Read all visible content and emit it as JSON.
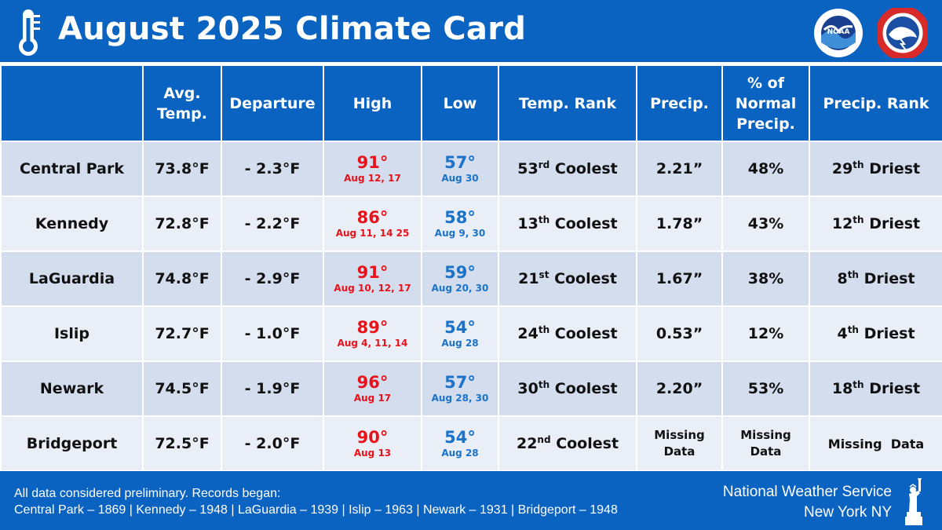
{
  "header": {
    "title": "August 2025 Climate Card",
    "icons": [
      "thermometer-icon",
      "noaa-logo",
      "nws-logo"
    ]
  },
  "columns": [
    "",
    "Avg. Temp.",
    "Departure",
    "High",
    "Low",
    "Temp. Rank",
    "Precip.",
    "% of Normal Precip.",
    "Precip. Rank"
  ],
  "stations": [
    {
      "name": "Central Park",
      "avg": "73.8°F",
      "departure": "- 2.3°F",
      "high": "91°",
      "high_date": "Aug 12, 17",
      "low": "57°",
      "low_date": "Aug 30",
      "temp_rank_num": "53",
      "temp_rank_sfx": "rd",
      "temp_rank_word": "Coolest",
      "precip": "2.21”",
      "pct": "48%",
      "precip_rank_num": "29",
      "precip_rank_sfx": "th",
      "precip_rank_word": "Driest"
    },
    {
      "name": "Kennedy",
      "avg": "72.8°F",
      "departure": "- 2.2°F",
      "high": "86°",
      "high_date": "Aug 11, 14 25",
      "low": "58°",
      "low_date": "Aug 9, 30",
      "temp_rank_num": "13",
      "temp_rank_sfx": "th",
      "temp_rank_word": "Coolest",
      "precip": "1.78”",
      "pct": "43%",
      "precip_rank_num": "12",
      "precip_rank_sfx": "th",
      "precip_rank_word": "Driest"
    },
    {
      "name": "LaGuardia",
      "avg": "74.8°F",
      "departure": "- 2.9°F",
      "high": "91°",
      "high_date": "Aug 10, 12, 17",
      "low": "59°",
      "low_date": "Aug 20, 30",
      "temp_rank_num": "21",
      "temp_rank_sfx": "st",
      "temp_rank_word": "Coolest",
      "precip": "1.67”",
      "pct": "38%",
      "precip_rank_num": "8",
      "precip_rank_sfx": "th",
      "precip_rank_word": "Driest"
    },
    {
      "name": "Islip",
      "avg": "72.7°F",
      "departure": "- 1.0°F",
      "high": "89°",
      "high_date": "Aug 4, 11, 14",
      "low": "54°",
      "low_date": "Aug 28",
      "temp_rank_num": "24",
      "temp_rank_sfx": "th",
      "temp_rank_word": "Coolest",
      "precip": "0.53”",
      "pct": "12%",
      "precip_rank_num": "4",
      "precip_rank_sfx": "th",
      "precip_rank_word": "Driest"
    },
    {
      "name": "Newark",
      "avg": "74.5°F",
      "departure": "- 1.9°F",
      "high": "96°",
      "high_date": "Aug 17",
      "low": "57°",
      "low_date": "Aug 28, 30",
      "temp_rank_num": "30",
      "temp_rank_sfx": "th",
      "temp_rank_word": "Coolest",
      "precip": "2.20”",
      "pct": "53%",
      "precip_rank_num": "18",
      "precip_rank_sfx": "th",
      "precip_rank_word": "Driest"
    },
    {
      "name": "Bridgeport",
      "avg": "72.5°F",
      "departure": "- 2.0°F",
      "high": "90°",
      "high_date": "Aug 13",
      "low": "54°",
      "low_date": "Aug 28",
      "temp_rank_num": "22",
      "temp_rank_sfx": "nd",
      "temp_rank_word": "Coolest",
      "precip_missing": [
        "Missing",
        "Data"
      ],
      "pct_missing": [
        "Missing",
        "Data"
      ],
      "precip_rank_missing": "Missing  Data"
    }
  ],
  "footer": {
    "note": "All data considered preliminary. Records began:",
    "records": "Central Park – 1869  |  Kennedy – 1948  |  LaGuardia – 1939  |  Islip – 1963  |  Newark – 1931  |  Bridgeport – 1948",
    "agency": "National Weather Service",
    "office": "New York NY"
  },
  "colors": {
    "brand_blue": "#0b63c1",
    "high_red": "#e8121b",
    "low_blue": "#1a73c8",
    "row_dark": "#d4dded",
    "row_light": "#eaeef6"
  }
}
